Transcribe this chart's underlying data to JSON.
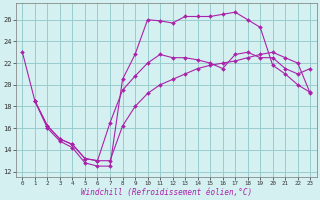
{
  "xlabel": "Windchill (Refroidissement éolien,°C)",
  "bg_color": "#d4f0f0",
  "line_color": "#aa22aa",
  "grid_color": "#99cccc",
  "xlim": [
    -0.5,
    23.5
  ],
  "ylim": [
    11.5,
    27.5
  ],
  "xticks": [
    0,
    1,
    2,
    3,
    4,
    5,
    6,
    7,
    8,
    9,
    10,
    11,
    12,
    13,
    14,
    15,
    16,
    17,
    18,
    19,
    20,
    21,
    22,
    23
  ],
  "yticks": [
    12,
    14,
    16,
    18,
    20,
    22,
    24,
    26
  ],
  "series": [
    {
      "x": [
        0,
        1,
        2,
        3,
        4,
        5,
        6,
        7,
        8,
        9,
        10,
        11,
        12,
        13,
        14,
        15,
        16,
        17,
        18,
        19,
        20,
        21,
        22,
        23
      ],
      "y": [
        23.0,
        18.5,
        16.0,
        14.8,
        14.2,
        12.8,
        12.5,
        12.5,
        20.5,
        22.8,
        26.0,
        25.9,
        25.7,
        26.3,
        26.3,
        26.3,
        26.5,
        26.7,
        26.0,
        25.3,
        21.8,
        21.0,
        20.0,
        19.3
      ]
    },
    {
      "x": [
        1,
        2,
        3,
        4,
        5,
        6,
        7,
        8,
        9,
        10,
        11,
        12,
        13,
        14,
        15,
        16,
        17,
        18,
        19,
        20,
        21,
        22,
        23
      ],
      "y": [
        18.5,
        16.2,
        15.0,
        14.5,
        13.2,
        13.0,
        16.5,
        19.5,
        20.8,
        22.0,
        22.8,
        22.5,
        22.5,
        22.3,
        22.0,
        21.5,
        22.8,
        23.0,
        22.5,
        22.5,
        21.5,
        21.0,
        21.5
      ]
    },
    {
      "x": [
        1,
        2,
        3,
        4,
        5,
        6,
        7,
        8,
        9,
        10,
        11,
        12,
        13,
        14,
        15,
        16,
        17,
        18,
        19,
        20,
        21,
        22,
        23
      ],
      "y": [
        18.5,
        16.2,
        15.0,
        14.5,
        13.2,
        13.0,
        13.0,
        16.2,
        18.0,
        19.2,
        20.0,
        20.5,
        21.0,
        21.5,
        21.8,
        22.0,
        22.2,
        22.5,
        22.8,
        23.0,
        22.5,
        22.0,
        19.2
      ]
    }
  ]
}
